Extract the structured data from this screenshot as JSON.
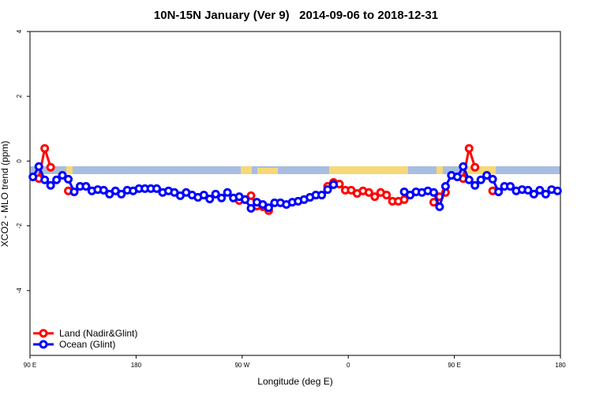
{
  "chart_data": {
    "type": "line",
    "title": "10N-15N January (Ver 9)   2014-09-06 to 2018-12-31",
    "x_label": "Longitude (deg E)",
    "y_label": "XCO2 - MLO trend (ppm)",
    "xlim": [
      90,
      540
    ],
    "xticks": [
      {
        "value": 90,
        "label": "90 E"
      },
      180,
      {
        "value": 270,
        "label": "90 W"
      },
      {
        "value": 360,
        "label": "0"
      },
      {
        "value": 450,
        "label": "90 E"
      },
      {
        "value": 540,
        "label": "180"
      }
    ],
    "ylim": [
      -6,
      4
    ],
    "yticks": [
      4,
      2,
      0,
      -2,
      -4
    ],
    "legend": "bottom-left",
    "x": [
      92.5,
      97.5,
      102.5,
      107.5,
      112.5,
      117.5,
      122.5,
      127.5,
      132.5,
      137.5,
      142.5,
      147.5,
      152.5,
      157.5,
      162.5,
      167.5,
      172.5,
      177.5,
      182.5,
      187.5,
      192.5,
      197.5,
      202.5,
      207.5,
      212.5,
      217.5,
      222.5,
      227.5,
      232.5,
      237.5,
      242.5,
      247.5,
      252.5,
      257.5,
      262.5,
      267.5,
      272.5,
      277.5,
      282.5,
      287.5,
      292.5,
      297.5,
      302.5,
      307.5,
      312.5,
      317.5,
      322.5,
      327.5,
      332.5,
      337.5,
      342.5,
      347.5,
      352.5,
      357.5,
      362.5,
      367.5,
      372.5,
      377.5,
      382.5,
      387.5,
      392.5,
      397.5,
      402.5,
      407.5,
      412.5,
      417.5,
      422.5,
      427.5,
      432.5,
      437.5,
      442.5,
      447.5,
      452.5,
      457.5,
      462.5,
      467.5,
      472.5,
      477.5,
      482.5,
      487.5,
      492.5,
      497.5,
      502.5,
      507.5,
      512.5,
      517.5,
      522.5,
      527.5,
      532.5,
      537.5
    ],
    "series": [
      {
        "name": "Land (Nadir&Glint)",
        "color": "#ff0000",
        "values": [
          null,
          -0.54,
          0.39,
          -0.19,
          null,
          null,
          -0.92,
          null,
          null,
          null,
          null,
          null,
          null,
          null,
          null,
          null,
          null,
          null,
          null,
          null,
          null,
          null,
          null,
          null,
          null,
          null,
          null,
          null,
          null,
          null,
          null,
          null,
          null,
          null,
          null,
          -1.22,
          -1.19,
          -1.07,
          -1.39,
          -1.41,
          -1.53,
          null,
          null,
          null,
          null,
          null,
          null,
          null,
          null,
          null,
          -0.78,
          -0.66,
          -0.71,
          -0.9,
          -0.9,
          -1.0,
          -0.92,
          -0.97,
          -1.1,
          -0.97,
          -1.05,
          -1.24,
          -1.24,
          -1.19,
          null,
          null,
          null,
          null,
          -1.27,
          -1.1,
          -0.97,
          null,
          null,
          -0.54,
          0.39,
          -0.19,
          null,
          null,
          -0.92,
          null,
          null,
          null,
          null,
          null,
          null,
          null,
          null,
          null,
          null,
          null
        ]
      },
      {
        "name": "Ocean (Glint)",
        "color": "#0000ff",
        "values": [
          -0.49,
          -0.17,
          -0.58,
          -0.75,
          -0.58,
          -0.44,
          -0.56,
          -0.95,
          -0.78,
          -0.78,
          -0.92,
          -0.88,
          -0.9,
          -1.02,
          -0.92,
          -1.02,
          -0.9,
          -0.92,
          -0.85,
          -0.85,
          -0.85,
          -0.85,
          -0.97,
          -0.92,
          -0.97,
          -1.07,
          -0.97,
          -1.05,
          -1.12,
          -1.05,
          -1.17,
          -1.02,
          -1.14,
          -0.97,
          -1.14,
          -1.1,
          -1.19,
          -1.46,
          -1.27,
          -1.34,
          -1.44,
          -1.29,
          -1.29,
          -1.34,
          -1.27,
          -1.24,
          -1.19,
          -1.12,
          -1.05,
          -1.05,
          -0.88,
          -0.73,
          null,
          null,
          null,
          null,
          null,
          null,
          null,
          null,
          null,
          null,
          null,
          -0.95,
          -1.05,
          -0.95,
          -0.97,
          -0.92,
          -0.97,
          -1.41,
          -0.78,
          -0.44,
          -0.49,
          -0.17,
          -0.58,
          -0.75,
          -0.58,
          -0.44,
          -0.56,
          -0.95,
          -0.78,
          -0.78,
          -0.92,
          -0.88,
          -0.9,
          -1.02,
          -0.9,
          -1.02,
          -0.88,
          -0.92
        ]
      }
    ]
  }
}
